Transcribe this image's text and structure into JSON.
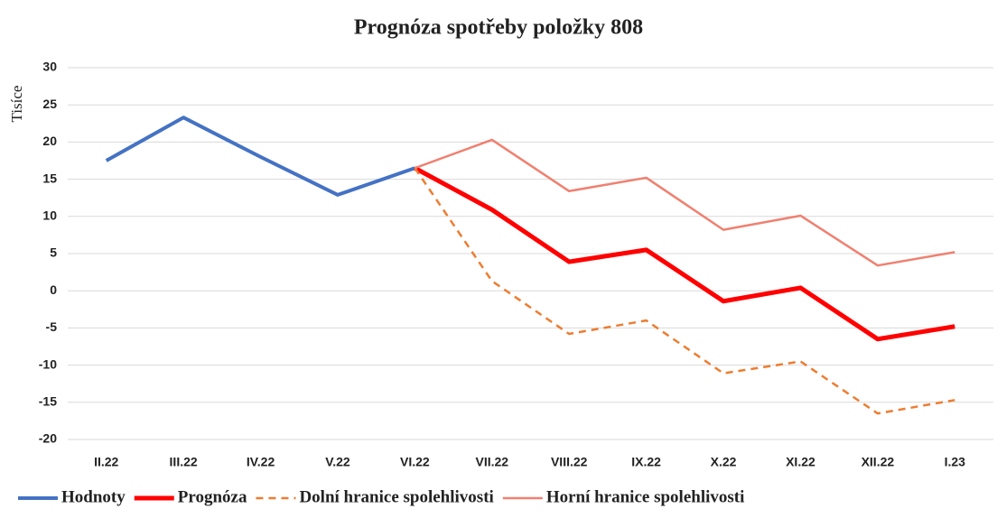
{
  "chart_data": {
    "type": "line",
    "title": "Prognóza spotřeby položky 808",
    "y_label": "Tisíce",
    "categories": [
      "II.22",
      "III.22",
      "IV.22",
      "V.22",
      "VI.22",
      "VII.22",
      "VIII.22",
      "IX.22",
      "X.22",
      "XI.22",
      "XII.22",
      "I.23"
    ],
    "series": [
      {
        "name": "Hodnoty",
        "color": "#4472c4",
        "values": [
          17.5,
          23.3,
          18,
          12.9,
          16.5,
          null,
          null,
          null,
          null,
          null,
          null,
          null
        ]
      },
      {
        "name": "Prognóza",
        "color": "#ff0000",
        "values": [
          null,
          null,
          null,
          null,
          16.5,
          10.9,
          3.9,
          5.5,
          -1.4,
          0.4,
          -6.5,
          -4.8
        ]
      },
      {
        "name": "Dolní hranice spolehlivosti",
        "color": "#ed7d31",
        "dashed": true,
        "values": [
          null,
          null,
          null,
          null,
          16.5,
          1.3,
          -5.8,
          -4.0,
          -11.1,
          -9.5,
          -16.5,
          -14.7
        ]
      },
      {
        "name": "Horní hranice spolehlivosti",
        "color": "#f08070",
        "values": [
          null,
          null,
          null,
          null,
          16.5,
          20.3,
          13.4,
          15.2,
          8.2,
          10.1,
          3.4,
          5.2
        ]
      }
    ],
    "ylim": [
      -20,
      30
    ],
    "yticks": [
      -20,
      -15,
      -10,
      -5,
      0,
      5,
      10,
      15,
      20,
      25,
      30
    ],
    "grid": true,
    "legend": "bottom"
  }
}
